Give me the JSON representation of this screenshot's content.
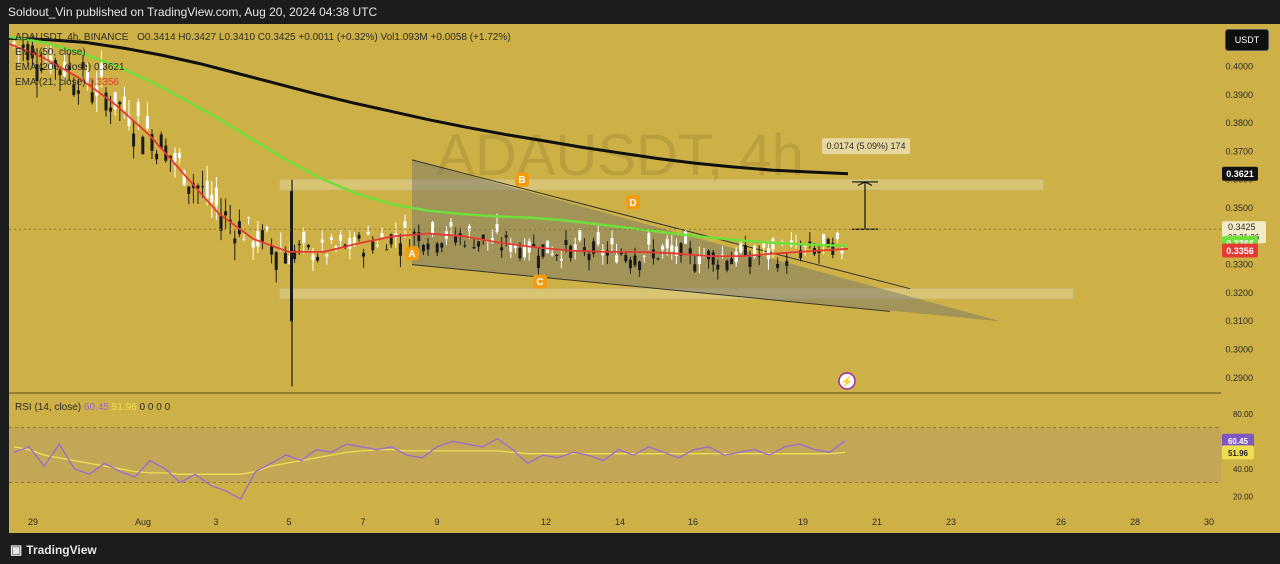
{
  "header": {
    "publish_line": "Soldout_Vin published on TradingView.com, Aug 20, 2024 04:38 UTC"
  },
  "footer": {
    "brand": "TradingView"
  },
  "toolbar": {
    "unit_label": "USDT"
  },
  "legend": {
    "symbol_line": "ADAUSDT, 4h, BINANCE",
    "ohlc": "O0.3414  H0.3427  L0.3410  C0.3425  +0.0011 (+0.32%)  Vol1.093M  +0.0058 (+1.72%)",
    "ema50": "EMA (50, close)",
    "ema200": "EMA (200, close)",
    "ema200_value": "0.3621",
    "ema21": "EMA (21, close)",
    "ema21_value": "0.3356",
    "rsi": "RSI (14, close)",
    "rsi_value": "60.45",
    "rsi_ma_value": "51.96",
    "rsi_extra": "0 0 0 0"
  },
  "watermark": "ADAUSDT, 4h",
  "colors": {
    "background": "#cdb146",
    "ema50": "#6fe03a",
    "ema200": "#101010",
    "ema21": "#e53935",
    "candle_up": "#ffffff",
    "candle_down": "#1a1a1a",
    "rsi": "#9c6ad6",
    "rsi_ma": "#f0de52",
    "label_marker": "#f39c12"
  },
  "chart_data": [
    {
      "type": "candlestick",
      "title": "ADAUSDT, 4h",
      "x_ticks": [
        "29",
        "Aug",
        "3",
        "5",
        "7",
        "9",
        "12",
        "14",
        "16",
        "19",
        "21",
        "23",
        "26",
        "28",
        "30"
      ],
      "y_ticks": [
        "0.4000",
        "0.3900",
        "0.3800",
        "0.3700",
        "0.3600",
        "0.3500",
        "0.3400",
        "0.3300",
        "0.3200",
        "0.3100",
        "0.3000",
        "0.2900"
      ],
      "ylim": [
        0.285,
        0.415
      ],
      "price_labels": {
        "ema200": "0.3621",
        "last": "0.3425",
        "countdown": "03:21:36",
        "ema50": "0.3366",
        "ema21": "0.3356"
      },
      "measure_label": "0.0174 (5.09%) 174",
      "pattern_points": [
        {
          "label": "A",
          "price": 0.334
        },
        {
          "label": "B",
          "price": 0.36
        },
        {
          "label": "C",
          "price": 0.324
        },
        {
          "label": "D",
          "price": 0.352
        }
      ],
      "zones": [
        {
          "from": 0.3565,
          "to": 0.36
        },
        {
          "from": 0.318,
          "to": 0.3215
        }
      ],
      "series": [
        {
          "name": "EMA (50, close)",
          "values": [
            0.4105,
            0.4085,
            0.405,
            0.4005,
            0.395,
            0.3885,
            0.3815,
            0.374,
            0.3665,
            0.36,
            0.3548,
            0.3512,
            0.349,
            0.3478,
            0.347,
            0.3465,
            0.3455,
            0.344,
            0.3425,
            0.341,
            0.3396,
            0.3385,
            0.3376,
            0.337,
            0.3366
          ]
        },
        {
          "name": "EMA (200, close)",
          "values": [
            0.41,
            0.4095,
            0.4085,
            0.4065,
            0.404,
            0.401,
            0.3975,
            0.394,
            0.3905,
            0.3872,
            0.3842,
            0.3812,
            0.3785,
            0.376,
            0.3738,
            0.3715,
            0.3695,
            0.3675,
            0.3658,
            0.3645,
            0.3634,
            0.3627,
            0.3621
          ]
        },
        {
          "name": "EMA (21, close)",
          "values": [
            0.408,
            0.403,
            0.396,
            0.387,
            0.376,
            0.362,
            0.348,
            0.339,
            0.3345,
            0.3345,
            0.3375,
            0.34,
            0.341,
            0.34,
            0.3378,
            0.3362,
            0.335,
            0.3345,
            0.3345,
            0.334,
            0.333,
            0.333,
            0.334,
            0.3348,
            0.3356
          ]
        }
      ]
    },
    {
      "type": "line",
      "title": "RSI (14, close)",
      "y_ticks": [
        "80.00",
        "60.45",
        "51.96",
        "40.00",
        "20.00"
      ],
      "ylim": [
        10,
        85
      ],
      "series": [
        {
          "name": "RSI (14, close)",
          "values": [
            52,
            56,
            42,
            58,
            40,
            36,
            44,
            38,
            34,
            46,
            40,
            30,
            36,
            28,
            24,
            18,
            38,
            44,
            50,
            46,
            54,
            52,
            58,
            56,
            54,
            56,
            50,
            48,
            56,
            60,
            58,
            56,
            62,
            54,
            44,
            50,
            48,
            52,
            50,
            46,
            54,
            50,
            56,
            52,
            48,
            54,
            56,
            50,
            52,
            54,
            50,
            56,
            58,
            54,
            52,
            60.45
          ]
        },
        {
          "name": "RSI MA",
          "values": [
            56,
            54,
            50,
            48,
            46,
            44,
            42,
            40,
            38,
            37,
            37,
            36,
            36,
            36,
            36,
            36,
            38,
            42,
            44,
            46,
            48,
            50,
            52,
            53,
            54,
            54,
            53,
            53,
            53,
            53,
            53,
            53,
            53,
            52,
            51,
            51,
            51,
            51,
            51,
            51,
            51,
            51,
            51,
            51,
            51,
            51,
            51,
            51,
            51,
            51,
            51,
            51,
            51,
            51,
            51,
            51.96
          ]
        }
      ]
    }
  ]
}
